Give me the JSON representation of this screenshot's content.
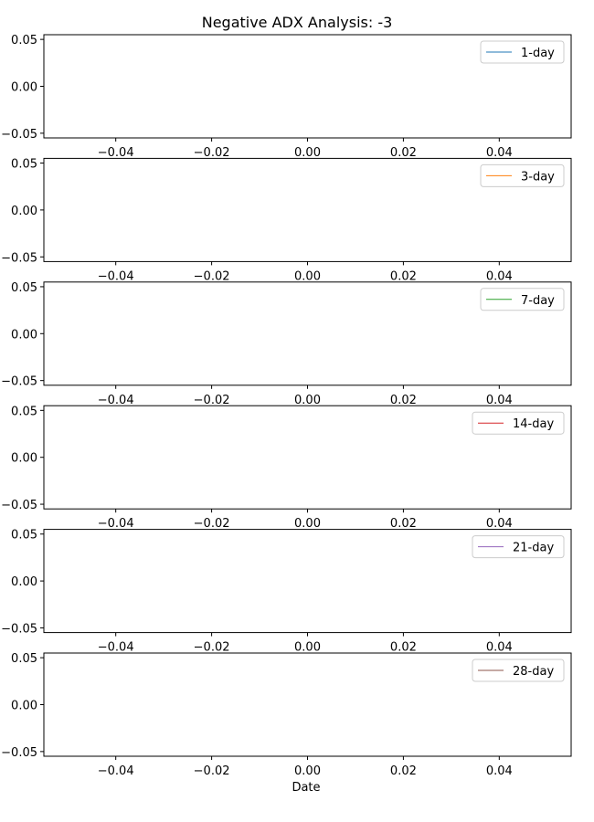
{
  "figure": {
    "title": "Negative ADX Analysis: -3",
    "xlabel": "Date"
  },
  "chart_data": [
    {
      "type": "line",
      "series": [
        {
          "name": "1-day",
          "color": "#1f77b4",
          "x": [],
          "y": []
        }
      ],
      "xlim": [
        -0.055,
        0.055
      ],
      "ylim": [
        -0.055,
        0.055
      ],
      "xticks": [
        "−0.04",
        "−0.02",
        "0.00",
        "0.02",
        "0.04"
      ],
      "yticks": [
        "−0.05",
        "0.00",
        "0.05"
      ],
      "legend": "upper-right",
      "grid": false
    },
    {
      "type": "line",
      "series": [
        {
          "name": "3-day",
          "color": "#ff7f0e",
          "x": [],
          "y": []
        }
      ],
      "xlim": [
        -0.055,
        0.055
      ],
      "ylim": [
        -0.055,
        0.055
      ],
      "xticks": [
        "−0.04",
        "−0.02",
        "0.00",
        "0.02",
        "0.04"
      ],
      "yticks": [
        "−0.05",
        "0.00",
        "0.05"
      ],
      "legend": "upper-right",
      "grid": false
    },
    {
      "type": "line",
      "series": [
        {
          "name": "7-day",
          "color": "#2ca02c",
          "x": [],
          "y": []
        }
      ],
      "xlim": [
        -0.055,
        0.055
      ],
      "ylim": [
        -0.055,
        0.055
      ],
      "xticks": [
        "−0.04",
        "−0.02",
        "0.00",
        "0.02",
        "0.04"
      ],
      "yticks": [
        "−0.05",
        "0.00",
        "0.05"
      ],
      "legend": "upper-right",
      "grid": false
    },
    {
      "type": "line",
      "series": [
        {
          "name": "14-day",
          "color": "#d62728",
          "x": [],
          "y": []
        }
      ],
      "xlim": [
        -0.055,
        0.055
      ],
      "ylim": [
        -0.055,
        0.055
      ],
      "xticks": [
        "−0.04",
        "−0.02",
        "0.00",
        "0.02",
        "0.04"
      ],
      "yticks": [
        "−0.05",
        "0.00",
        "0.05"
      ],
      "legend": "upper-right",
      "grid": false
    },
    {
      "type": "line",
      "series": [
        {
          "name": "21-day",
          "color": "#9467bd",
          "x": [],
          "y": []
        }
      ],
      "xlim": [
        -0.055,
        0.055
      ],
      "ylim": [
        -0.055,
        0.055
      ],
      "xticks": [
        "−0.04",
        "−0.02",
        "0.00",
        "0.02",
        "0.04"
      ],
      "yticks": [
        "−0.05",
        "0.00",
        "0.05"
      ],
      "legend": "upper-right",
      "grid": false
    },
    {
      "type": "line",
      "series": [
        {
          "name": "28-day",
          "color": "#8c564b",
          "x": [],
          "y": []
        }
      ],
      "xlim": [
        -0.055,
        0.055
      ],
      "ylim": [
        -0.055,
        0.055
      ],
      "xticks": [
        "−0.04",
        "−0.02",
        "0.00",
        "0.02",
        "0.04"
      ],
      "yticks": [
        "−0.05",
        "0.00",
        "0.05"
      ],
      "legend": "upper-right",
      "grid": false
    }
  ]
}
